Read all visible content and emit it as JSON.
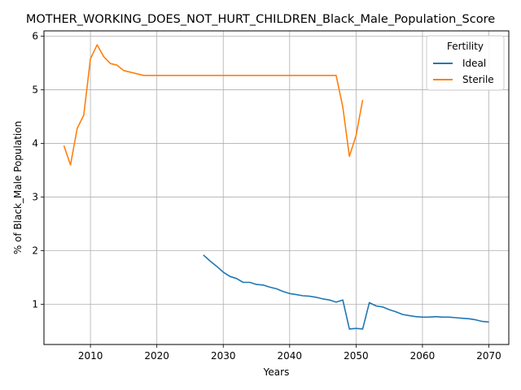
{
  "chart_data": {
    "type": "line",
    "title": "MOTHER_WORKING_DOES_NOT_HURT_CHILDREN_Black_Male_Population_Score",
    "xlabel": "Years",
    "ylabel": "% of Black_Male Population",
    "xlim": [
      2003,
      2073
    ],
    "ylim": [
      0.25,
      6.1
    ],
    "xticks": [
      2010,
      2020,
      2030,
      2040,
      2050,
      2060,
      2070
    ],
    "yticks": [
      1,
      2,
      3,
      4,
      5,
      6
    ],
    "grid": true,
    "legend": {
      "title": "Fertility",
      "placement": "top-right"
    },
    "series": [
      {
        "name": "Ideal",
        "color": "#1f77b4",
        "x": [
          2027,
          2028,
          2029,
          2030,
          2031,
          2032,
          2033,
          2034,
          2035,
          2036,
          2037,
          2038,
          2039,
          2040,
          2041,
          2042,
          2043,
          2044,
          2045,
          2046,
          2047,
          2048,
          2049,
          2050,
          2051,
          2052,
          2053,
          2054,
          2055,
          2056,
          2057,
          2058,
          2059,
          2060,
          2061,
          2062,
          2063,
          2064,
          2065,
          2066,
          2067,
          2068,
          2069,
          2070
        ],
        "y": [
          1.92,
          1.81,
          1.71,
          1.6,
          1.52,
          1.48,
          1.41,
          1.41,
          1.37,
          1.36,
          1.32,
          1.29,
          1.24,
          1.2,
          1.18,
          1.16,
          1.15,
          1.13,
          1.1,
          1.08,
          1.04,
          1.08,
          0.54,
          0.55,
          0.54,
          1.03,
          0.97,
          0.95,
          0.9,
          0.86,
          0.81,
          0.79,
          0.77,
          0.76,
          0.76,
          0.77,
          0.76,
          0.76,
          0.75,
          0.74,
          0.73,
          0.71,
          0.68,
          0.67
        ]
      },
      {
        "name": "Sterile",
        "color": "#ff7f0e",
        "x": [
          2006,
          2007,
          2008,
          2009,
          2010,
          2011,
          2012,
          2013,
          2014,
          2015,
          2016,
          2017,
          2018,
          2019,
          2020,
          2025,
          2030,
          2035,
          2040,
          2045,
          2046,
          2047,
          2048,
          2049,
          2050,
          2051
        ],
        "y": [
          3.96,
          3.6,
          4.28,
          4.53,
          5.58,
          5.84,
          5.62,
          5.49,
          5.46,
          5.36,
          5.33,
          5.3,
          5.27,
          5.27,
          5.27,
          5.27,
          5.27,
          5.27,
          5.27,
          5.27,
          5.27,
          5.27,
          4.68,
          3.76,
          4.15,
          4.81
        ]
      }
    ]
  }
}
